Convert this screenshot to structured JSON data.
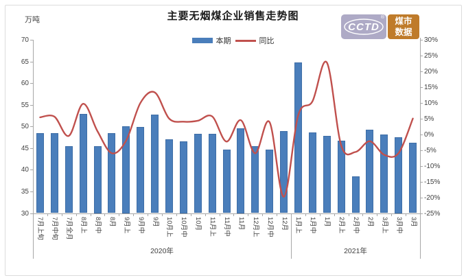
{
  "header": {
    "title": "主要无烟煤企业销售走势图"
  },
  "left_unit": "万吨",
  "legend": [
    {
      "label": "本期",
      "type": "bar",
      "color": "#4a7ebb"
    },
    {
      "label": "同比",
      "type": "line",
      "color": "#c0504d"
    }
  ],
  "logo": {
    "cctd": "CCTD",
    "reg": "®",
    "line1": "煤市",
    "line2": "数据",
    "left_bg": "#aeaac6",
    "right_bg": "#bf7b2a"
  },
  "chart_data": {
    "type": "bar+line combo",
    "title": "主要无烟煤企业销售走势图",
    "categories": [
      "7月上旬",
      "7月中旬",
      "7月全月",
      "8月上",
      "8月中",
      "8月",
      "9月上",
      "9月中",
      "9月",
      "10月上",
      "10月中",
      "10月",
      "11月上",
      "11月中",
      "11月",
      "12月上",
      "12月中",
      "12月",
      "1月上",
      "1月中",
      "1月",
      "2月上",
      "2月中",
      "2月",
      "3月上",
      "3月中",
      "3月"
    ],
    "group_labels": [
      {
        "label": "2020年",
        "start": 0,
        "end": 17
      },
      {
        "label": "2021年",
        "start": 18,
        "end": 26
      }
    ],
    "series": [
      {
        "name": "本期",
        "type": "bar",
        "axis": "left",
        "unit": "万吨",
        "color": "#4a7ebb",
        "values": [
          48.4,
          48.4,
          45.4,
          52.9,
          45.5,
          48.4,
          50.0,
          49.9,
          52.8,
          47.1,
          46.5,
          48.3,
          48.3,
          44.7,
          49.5,
          45.4,
          44.6,
          48.9,
          64.7,
          48.6,
          47.8,
          46.7,
          38.4,
          49.3,
          48.1,
          47.5,
          46.3
        ]
      },
      {
        "name": "同比",
        "type": "line",
        "axis": "right",
        "unit": "%",
        "color": "#c0504d",
        "values": [
          5.4,
          5.6,
          -0.5,
          9.7,
          1.0,
          -6.0,
          -2.0,
          10.0,
          13.3,
          5.0,
          4.0,
          4.3,
          5.7,
          -2.3,
          4.5,
          -6.0,
          3.9,
          -19.8,
          6.0,
          10.5,
          22.8,
          -3.5,
          -5.6,
          -2.2,
          -6.5,
          -6.0,
          5.0
        ]
      }
    ],
    "left_axis": {
      "label": "万吨",
      "min": 30,
      "max": 70,
      "tick_labels": [
        "70",
        "65",
        "60",
        "55",
        "50",
        "45",
        "40",
        "35",
        "30"
      ]
    },
    "right_axis": {
      "min": -25,
      "max": 30,
      "tick_labels": [
        "30%",
        "25%",
        "20%",
        "15%",
        "10%",
        "5%",
        "0%",
        "-5%",
        "-10%",
        "-15%",
        "-20%",
        "-25%"
      ]
    },
    "grid": false,
    "legend_position": "top-center"
  }
}
